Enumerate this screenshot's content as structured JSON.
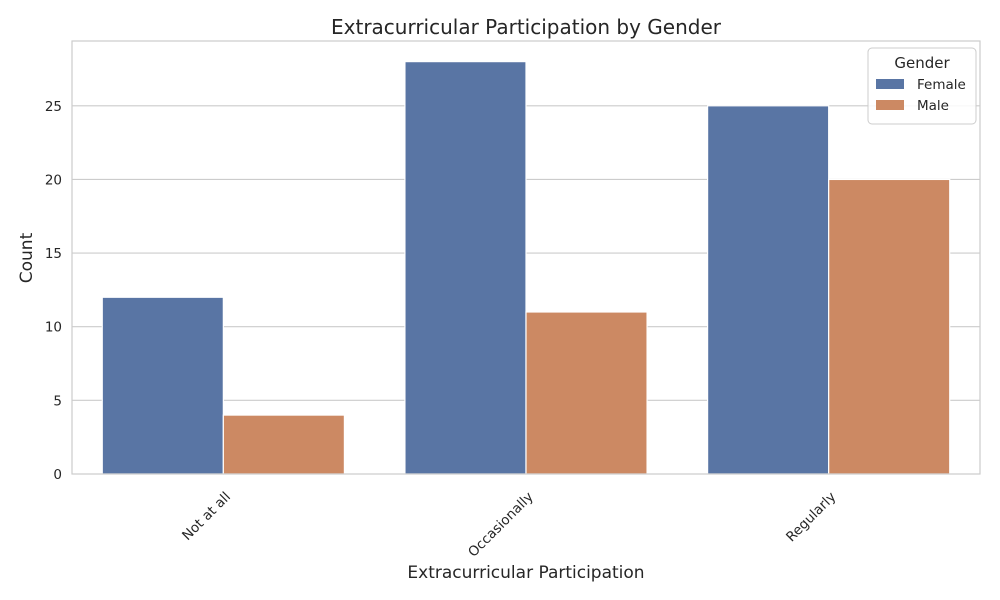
{
  "chart_data": {
    "type": "bar",
    "title": "Extracurricular Participation by Gender",
    "xlabel": "Extracurricular Participation",
    "ylabel": "Count",
    "categories": [
      "Not at all",
      "Occasionally",
      "Regularly"
    ],
    "series": [
      {
        "name": "Female",
        "values": [
          12,
          28,
          25
        ],
        "color": "#5975a4"
      },
      {
        "name": "Male",
        "values": [
          4,
          11,
          20
        ],
        "color": "#cc8963"
      }
    ],
    "ylim": [
      0,
      29.4
    ],
    "yticks": [
      0,
      5,
      10,
      15,
      20,
      25
    ],
    "grid": true,
    "legend": {
      "title": "Gender",
      "placement": "top-right"
    }
  }
}
